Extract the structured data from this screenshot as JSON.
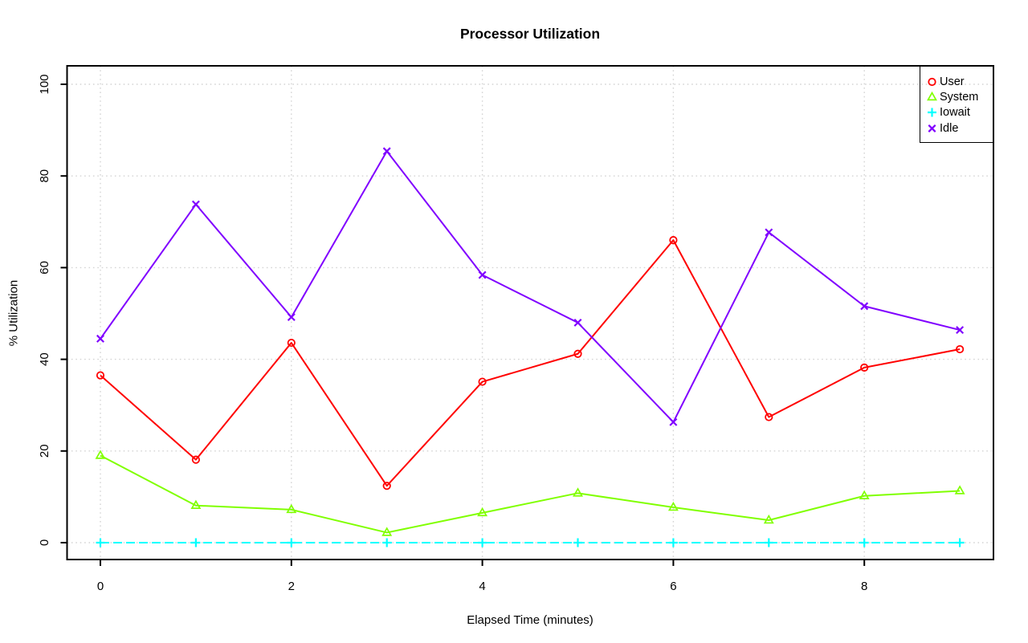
{
  "title": "Processor Utilization",
  "chart_data": {
    "type": "line",
    "title": "Processor Utilization",
    "xlabel": "Elapsed Time (minutes)",
    "ylabel": "% Utilization",
    "x": [
      0,
      1,
      2,
      3,
      4,
      5,
      6,
      7,
      8,
      9
    ],
    "xlim": [
      -0.36,
      9.36
    ],
    "ylim": [
      -4,
      104
    ],
    "x_ticks": [
      0,
      2,
      4,
      6,
      8
    ],
    "y_ticks": [
      0,
      20,
      40,
      60,
      80,
      100
    ],
    "grid": "dotted gray, horizontal and vertical",
    "legend_position": "top-right",
    "background": "#FFFFFF",
    "grid_color": "#D4D4D4",
    "series": [
      {
        "name": "User",
        "color": "#FF0000",
        "marker": "circle",
        "line": "solid",
        "values": [
          36.5,
          18.1,
          43.6,
          12.4,
          35.1,
          41.2,
          66.0,
          27.4,
          38.2,
          42.2
        ]
      },
      {
        "name": "System",
        "color": "#80FF00",
        "marker": "triangle",
        "line": "solid",
        "values": [
          19.0,
          8.1,
          7.2,
          2.2,
          6.5,
          10.8,
          7.7,
          4.9,
          10.2,
          11.3
        ]
      },
      {
        "name": "Iowait",
        "color": "#00FFFF",
        "marker": "plus",
        "line": "dashed",
        "values": [
          0,
          0,
          0,
          0,
          0,
          0,
          0,
          0,
          0,
          0
        ]
      },
      {
        "name": "Idle",
        "color": "#8000FF",
        "marker": "x",
        "line": "solid",
        "values": [
          44.5,
          73.8,
          49.2,
          85.4,
          58.4,
          48.0,
          26.3,
          67.7,
          51.6,
          46.4
        ]
      }
    ]
  }
}
